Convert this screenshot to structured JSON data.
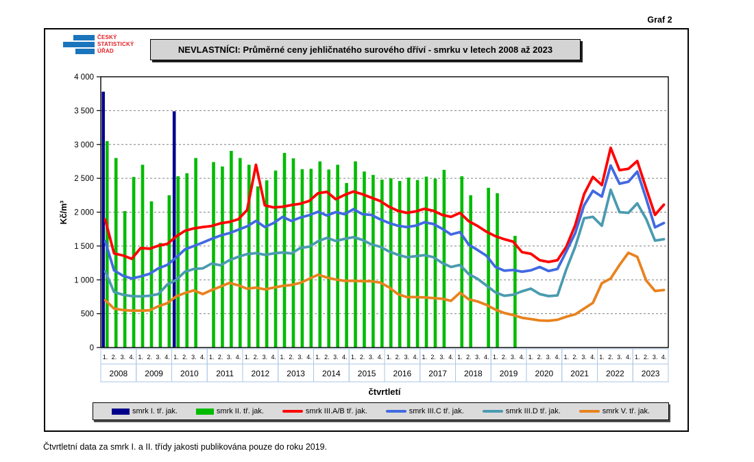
{
  "page": {
    "graf_label": "Graf 2",
    "title": "NEVLASTNÍCI: Průměrné ceny jehličnatého surového dříví - smrku v letech 2008 až 2023",
    "footer_note": "Čtvrtletní data za smrk I. a II. třídy jakosti publikována pouze do roku 2019."
  },
  "logo": {
    "line1": "ČESKÝ",
    "line2": "STATISTICKÝ",
    "line3": "ÚŘAD"
  },
  "chart_data": {
    "type": "bar+line combo, quarterly time series",
    "title": "NEVLASTNÍCI: Průměrné ceny jehličnatého surového dříví - smrku v letech 2008 až 2023",
    "xlabel": "čtvrtletí",
    "ylabel": "Kč/m³",
    "ylim": [
      0,
      4000
    ],
    "y_step": 500,
    "y_tick_labels": [
      "0",
      "500",
      "1 000",
      "1 500",
      "2 000",
      "2 500",
      "3 000",
      "3 500",
      "4 000"
    ],
    "grid": "dashed horizontal",
    "legend_position": "bottom",
    "years": [
      "2008",
      "2009",
      "2010",
      "2011",
      "2012",
      "2013",
      "2014",
      "2015",
      "2016",
      "2017",
      "2018",
      "2019",
      "2020",
      "2021",
      "2022",
      "2023"
    ],
    "quarter_labels": [
      "1.",
      "2.",
      "3.",
      "4."
    ],
    "series": [
      {
        "name": "smrk I. tř. jak.",
        "type": "bar",
        "color": "#00008B",
        "values": [
          3780,
          null,
          null,
          null,
          null,
          null,
          null,
          null,
          3490,
          null,
          null,
          null,
          null,
          null,
          null,
          null,
          null,
          null,
          null,
          null,
          null,
          null,
          null,
          null,
          null,
          null,
          null,
          null,
          null,
          null,
          null,
          null,
          null,
          null,
          null,
          null,
          null,
          null,
          null,
          null,
          null,
          null,
          null,
          null,
          null,
          null,
          null,
          null,
          null,
          null,
          null,
          null,
          null,
          null,
          null,
          null,
          null,
          null,
          null,
          null,
          null,
          null,
          null,
          null
        ]
      },
      {
        "name": "smrk II. tř. jak.",
        "type": "bar",
        "color": "#00BB00",
        "values": [
          3050,
          2800,
          2015,
          2520,
          2700,
          2160,
          1545,
          2250,
          2530,
          2575,
          2800,
          null,
          2740,
          2675,
          2905,
          2800,
          2700,
          2380,
          2470,
          2615,
          2875,
          2795,
          2635,
          2640,
          2750,
          2630,
          2700,
          2430,
          2750,
          2600,
          2550,
          2480,
          2500,
          2460,
          2510,
          2475,
          2525,
          2495,
          2625,
          null,
          2530,
          2250,
          null,
          2360,
          2280,
          null,
          1650,
          null,
          null,
          null,
          null,
          null,
          null,
          null,
          null,
          null,
          null,
          null,
          null,
          null,
          null,
          null,
          null,
          null
        ]
      },
      {
        "name": "smrk III.A/B tř. jak.",
        "type": "line",
        "color": "#FE0000",
        "values": [
          1890,
          1390,
          1360,
          1310,
          1470,
          1460,
          1505,
          1530,
          1640,
          1725,
          1760,
          1780,
          1795,
          1835,
          1855,
          1895,
          2030,
          2700,
          2100,
          2070,
          2080,
          2105,
          2125,
          2165,
          2280,
          2300,
          2190,
          2255,
          2305,
          2265,
          2215,
          2165,
          2080,
          2020,
          1990,
          2010,
          2050,
          2020,
          1960,
          1930,
          1990,
          1865,
          1795,
          1710,
          1645,
          1600,
          1565,
          1410,
          1385,
          1290,
          1265,
          1290,
          1490,
          1810,
          2265,
          2520,
          2400,
          2950,
          2620,
          2640,
          2755,
          2350,
          1960,
          2110
        ]
      },
      {
        "name": "smrk III.C tř. jak.",
        "type": "line",
        "color": "#4169E1",
        "values": [
          1570,
          1140,
          1060,
          1020,
          1050,
          1090,
          1170,
          1220,
          1330,
          1450,
          1500,
          1550,
          1605,
          1655,
          1690,
          1740,
          1790,
          1870,
          1780,
          1840,
          1930,
          1870,
          1920,
          1955,
          2005,
          1950,
          2000,
          1970,
          2045,
          1970,
          1960,
          1895,
          1840,
          1800,
          1780,
          1800,
          1850,
          1825,
          1755,
          1670,
          1705,
          1520,
          1440,
          1355,
          1190,
          1135,
          1145,
          1120,
          1140,
          1190,
          1130,
          1160,
          1420,
          1690,
          2100,
          2315,
          2230,
          2690,
          2420,
          2450,
          2600,
          2200,
          1775,
          1840
        ]
      },
      {
        "name": "smrk III.D tř. jak.",
        "type": "line",
        "color": "#4A9BAF",
        "values": [
          1125,
          820,
          780,
          760,
          755,
          765,
          790,
          930,
          1000,
          1120,
          1160,
          1170,
          1240,
          1215,
          1290,
          1340,
          1380,
          1395,
          1370,
          1390,
          1405,
          1390,
          1470,
          1490,
          1570,
          1620,
          1575,
          1605,
          1630,
          1590,
          1525,
          1490,
          1420,
          1370,
          1335,
          1350,
          1365,
          1335,
          1250,
          1190,
          1220,
          1085,
          1015,
          915,
          815,
          765,
          780,
          830,
          870,
          790,
          760,
          770,
          1155,
          1490,
          1910,
          1930,
          1800,
          2330,
          2000,
          1990,
          2130,
          1900,
          1580,
          1600
        ]
      },
      {
        "name": "smrk V. tř. jak.",
        "type": "line",
        "color": "#E8821E",
        "values": [
          700,
          575,
          555,
          545,
          545,
          550,
          610,
          655,
          755,
          805,
          845,
          790,
          850,
          900,
          955,
          920,
          870,
          885,
          860,
          885,
          910,
          925,
          955,
          1015,
          1075,
          1035,
          1005,
          985,
          985,
          980,
          980,
          960,
          890,
          790,
          745,
          745,
          740,
          730,
          720,
          690,
          810,
          712,
          680,
          630,
          560,
          510,
          480,
          440,
          420,
          400,
          395,
          410,
          455,
          490,
          575,
          660,
          950,
          1020,
          1220,
          1400,
          1340,
          990,
          835,
          850
        ]
      }
    ]
  }
}
